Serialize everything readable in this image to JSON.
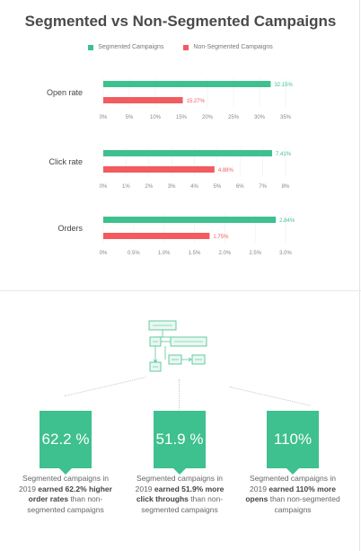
{
  "header": {
    "title": "Segmented vs Non-Segmented Campaigns"
  },
  "legend": [
    {
      "label": "Segmented Campaigns",
      "color": "#3ec08f"
    },
    {
      "label": "Non-Segmented Campaigns",
      "color": "#f25b5f"
    }
  ],
  "chart_data": [
    {
      "type": "bar",
      "categories": [
        "Open rate"
      ],
      "series": [
        {
          "name": "Segmented Campaigns",
          "values": [
            32.15
          ],
          "labels": [
            "32.15%"
          ],
          "color": "#3ec08f"
        },
        {
          "name": "Non-Segmented Campaigns",
          "values": [
            15.27
          ],
          "labels": [
            "15.27%"
          ],
          "color": "#f25b5f"
        }
      ],
      "xlim": [
        0,
        35
      ],
      "ticks": [
        "0%",
        "5%",
        "10%",
        "15%",
        "20%",
        "25%",
        "30%",
        "35%"
      ],
      "tick_values": [
        0,
        5,
        10,
        15,
        20,
        25,
        30,
        35
      ]
    },
    {
      "type": "bar",
      "categories": [
        "Click rate"
      ],
      "series": [
        {
          "name": "Segmented Campaigns",
          "values": [
            7.41
          ],
          "labels": [
            "7.41%"
          ],
          "color": "#3ec08f"
        },
        {
          "name": "Non-Segmented Campaigns",
          "values": [
            4.88
          ],
          "labels": [
            "4.88%"
          ],
          "color": "#f25b5f"
        }
      ],
      "xlim": [
        0,
        8
      ],
      "ticks": [
        "0%",
        "1%",
        "2%",
        "3%",
        "4%",
        "5%",
        "6%",
        "7%",
        "8%"
      ],
      "tick_values": [
        0,
        1,
        2,
        3,
        4,
        5,
        6,
        7,
        8
      ]
    },
    {
      "type": "bar",
      "categories": [
        "Orders"
      ],
      "series": [
        {
          "name": "Segmented Campaigns",
          "values": [
            2.84
          ],
          "labels": [
            "2.84%"
          ],
          "color": "#3ec08f"
        },
        {
          "name": "Non-Segmented Campaigns",
          "values": [
            1.75
          ],
          "labels": [
            "1.75%"
          ],
          "color": "#f25b5f"
        }
      ],
      "xlim": [
        0,
        3
      ],
      "ticks": [
        "0%",
        "0.5%",
        "1.0%",
        "1.5%",
        "2.0%",
        "2.5%",
        "3.0%"
      ],
      "tick_values": [
        0,
        0.5,
        1.0,
        1.5,
        2.0,
        2.5,
        3.0
      ]
    }
  ],
  "stats": [
    {
      "value": "62.2 %",
      "pre": "Segmented campaigns in 2019 ",
      "bold": "earned 62.2% higher order rates",
      "post": " than non-segmented campaigns"
    },
    {
      "value": "51.9 %",
      "pre": "Segmented campaigns in 2019 ",
      "bold": "earned 51.9% more click throughs",
      "post": " than non-segmented campaigns"
    },
    {
      "value": "110%",
      "pre": "Segmented campaigns in 2019 ",
      "bold": "earned 110% more opens",
      "post": " than non-segmented campaigns"
    }
  ]
}
